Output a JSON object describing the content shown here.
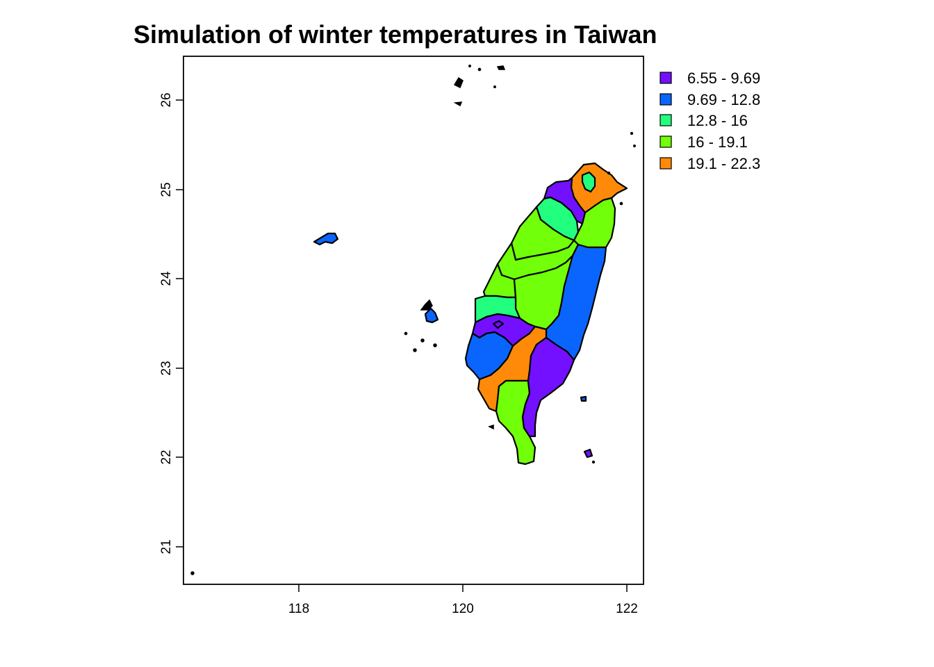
{
  "title": "Simulation of winter temperatures in Taiwan",
  "map": {
    "x_axis": {
      "ticks": [
        "118",
        "120",
        "122"
      ],
      "range": [
        116.7,
        122.2
      ]
    },
    "y_axis": {
      "ticks": [
        "21",
        "22",
        "23",
        "24",
        "25",
        "26"
      ],
      "range": [
        20.6,
        26.5
      ]
    },
    "box": "on"
  },
  "legend": {
    "placement": "top-right",
    "items": [
      {
        "label": "6.55 - 9.69",
        "color": "#7210FF"
      },
      {
        "label": "9.69 - 12.8",
        "color": "#0A65FF"
      },
      {
        "label": "12.8 - 16",
        "color": "#22FF7F"
      },
      {
        "label": "16 - 19.1",
        "color": "#71FF0A"
      },
      {
        "label": "19.1 - 22.3",
        "color": "#FF8A0A"
      }
    ]
  }
}
